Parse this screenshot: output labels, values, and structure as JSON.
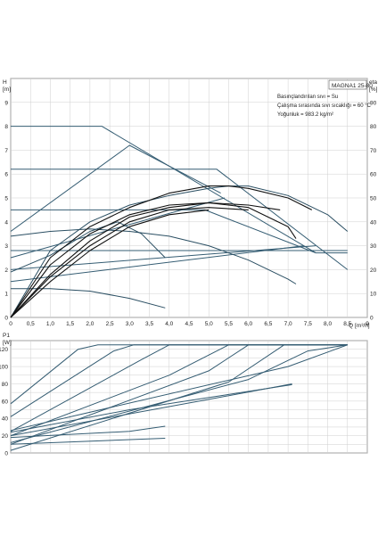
{
  "chart_data": [
    {
      "type": "line",
      "title": "MAGNA1 25-80",
      "notes": [
        "Basınçlandırılan sıvı = Su",
        "Çalışma sırasında sıvı sıcaklığı = 60 °C",
        "Yoğunluk = 983.2 kg/m²"
      ],
      "ylabel": "H",
      "yunit": "[m]",
      "y2label": "eta",
      "y2unit": "[%]",
      "xlabel": "Q",
      "xunit": "[m³/h]",
      "xlim": [
        0,
        9
      ],
      "ylim": [
        0,
        10
      ],
      "y2lim": [
        0,
        100
      ],
      "grid": true,
      "x_ticks": [
        "0",
        "0,5",
        "1,0",
        "1,5",
        "2,0",
        "2,5",
        "3,0",
        "3,5",
        "4,0",
        "4,5",
        "5,0",
        "5,5",
        "6,0",
        "6,5",
        "7,0",
        "7,5",
        "8,0",
        "8,5",
        "9"
      ],
      "y_ticks": [
        "0",
        "1",
        "2",
        "3",
        "4",
        "5",
        "6",
        "7",
        "8",
        "9"
      ],
      "y2_ticks": [
        "0",
        "10",
        "20",
        "30",
        "40",
        "50",
        "60",
        "70",
        "80",
        "90"
      ],
      "series": [
        {
          "role": "constant-pressure",
          "x": [
            0,
            2.3,
            7.7,
            8.5
          ],
          "y": [
            8.0,
            8.0,
            2.7,
            2.7
          ]
        },
        {
          "role": "constant-pressure",
          "x": [
            0,
            5.2,
            8.5
          ],
          "y": [
            6.2,
            6.2,
            2.0
          ]
        },
        {
          "role": "constant-pressure",
          "x": [
            0,
            4.9,
            7.7
          ],
          "y": [
            4.5,
            4.5,
            2.7
          ]
        },
        {
          "role": "constant-pressure",
          "x": [
            0,
            8.5
          ],
          "y": [
            2.8,
            2.8
          ]
        },
        {
          "role": "proportional-pressure",
          "x": [
            0,
            3.0,
            5.3
          ],
          "y": [
            3.6,
            7.2,
            5.2
          ]
        },
        {
          "role": "proportional-pressure",
          "x": [
            0,
            5.4
          ],
          "y": [
            2.5,
            5.0
          ]
        },
        {
          "role": "proportional-pressure",
          "x": [
            0,
            7.7
          ],
          "y": [
            2.0,
            3.0
          ]
        },
        {
          "role": "proportional-pressure",
          "x": [
            0,
            7.4
          ],
          "y": [
            1.5,
            3.0
          ]
        },
        {
          "role": "constant-curve",
          "x": [
            0,
            1,
            2,
            3,
            4,
            5,
            5.5,
            6,
            7,
            8,
            8.5
          ],
          "y": [
            0,
            2.8,
            4.0,
            4.7,
            5.1,
            5.4,
            5.5,
            5.5,
            5.1,
            4.3,
            3.6
          ]
        },
        {
          "role": "constant-curve",
          "x": [
            0,
            1,
            2,
            3,
            4,
            5,
            6,
            7,
            7.2
          ],
          "y": [
            3.4,
            3.6,
            3.7,
            3.6,
            3.4,
            3.0,
            2.4,
            1.6,
            1.4
          ]
        },
        {
          "role": "constant-curve",
          "x": [
            0,
            1,
            2,
            3,
            3.9
          ],
          "y": [
            1.2,
            1.2,
            1.1,
            0.8,
            0.4
          ]
        },
        {
          "role": "constant-curve",
          "x": [
            0,
            1,
            2,
            2.7,
            3.3,
            3.9
          ],
          "y": [
            1.9,
            2.6,
            3.6,
            4.0,
            3.5,
            2.5
          ]
        },
        {
          "role": "efficiency",
          "x": [
            0,
            1,
            2,
            3,
            4,
            5,
            5.5,
            6,
            7,
            7.6
          ],
          "y": [
            0,
            25,
            38,
            46,
            52,
            55,
            55,
            54,
            50,
            45
          ]
        },
        {
          "role": "efficiency",
          "x": [
            0,
            1,
            2,
            3,
            4,
            5,
            6,
            7,
            7.2
          ],
          "y": [
            0,
            22,
            35,
            43,
            47,
            48,
            46,
            38,
            33
          ]
        },
        {
          "role": "efficiency",
          "x": [
            0,
            1,
            2,
            3,
            4,
            5,
            6,
            6.8
          ],
          "y": [
            0,
            18,
            32,
            42,
            46,
            48,
            47,
            45
          ]
        },
        {
          "role": "efficiency",
          "x": [
            0,
            1,
            2,
            3,
            4,
            5,
            6
          ],
          "y": [
            0,
            17,
            30,
            40,
            45,
            46,
            45
          ]
        },
        {
          "role": "efficiency",
          "x": [
            0,
            1,
            2,
            3,
            4,
            5
          ],
          "y": [
            0,
            15,
            28,
            38,
            43,
            45
          ]
        }
      ]
    },
    {
      "type": "line",
      "ylabel": "P1",
      "yunit": "[W]",
      "xlim": [
        0,
        9
      ],
      "ylim": [
        0,
        130
      ],
      "grid": true,
      "y_ticks": [
        "0",
        "20",
        "40",
        "60",
        "80",
        "100",
        "120"
      ],
      "series": [
        {
          "x": [
            0,
            1.7,
            2.2,
            8.5
          ],
          "y": [
            57,
            120,
            125,
            125
          ]
        },
        {
          "x": [
            0,
            2.6,
            3.1,
            8.5
          ],
          "y": [
            42,
            118,
            125,
            125
          ]
        },
        {
          "x": [
            0,
            3.3,
            4.0,
            8.5
          ],
          "y": [
            25,
            108,
            125,
            125
          ]
        },
        {
          "x": [
            0,
            4.0,
            5.5,
            8.5
          ],
          "y": [
            20,
            90,
            125,
            125
          ]
        },
        {
          "x": [
            0,
            5.0,
            6.0,
            8.5
          ],
          "y": [
            10,
            95,
            125,
            125
          ]
        },
        {
          "x": [
            0,
            5.5,
            6.9,
            8.5
          ],
          "y": [
            3,
            82,
            125,
            125
          ]
        },
        {
          "x": [
            0,
            6.0,
            7.5,
            8.5
          ],
          "y": [
            12,
            85,
            118,
            125
          ]
        },
        {
          "x": [
            0,
            7.0,
            8.5
          ],
          "y": [
            26,
            100,
            125
          ]
        },
        {
          "x": [
            0,
            3.0,
            7.1
          ],
          "y": [
            24,
            50,
            79
          ]
        },
        {
          "x": [
            0,
            5.0,
            7.1
          ],
          "y": [
            20,
            62,
            80
          ]
        },
        {
          "x": [
            0,
            3.9
          ],
          "y": [
            10,
            17
          ]
        },
        {
          "x": [
            0,
            3.0,
            3.9
          ],
          "y": [
            18,
            25,
            31
          ]
        }
      ]
    }
  ]
}
